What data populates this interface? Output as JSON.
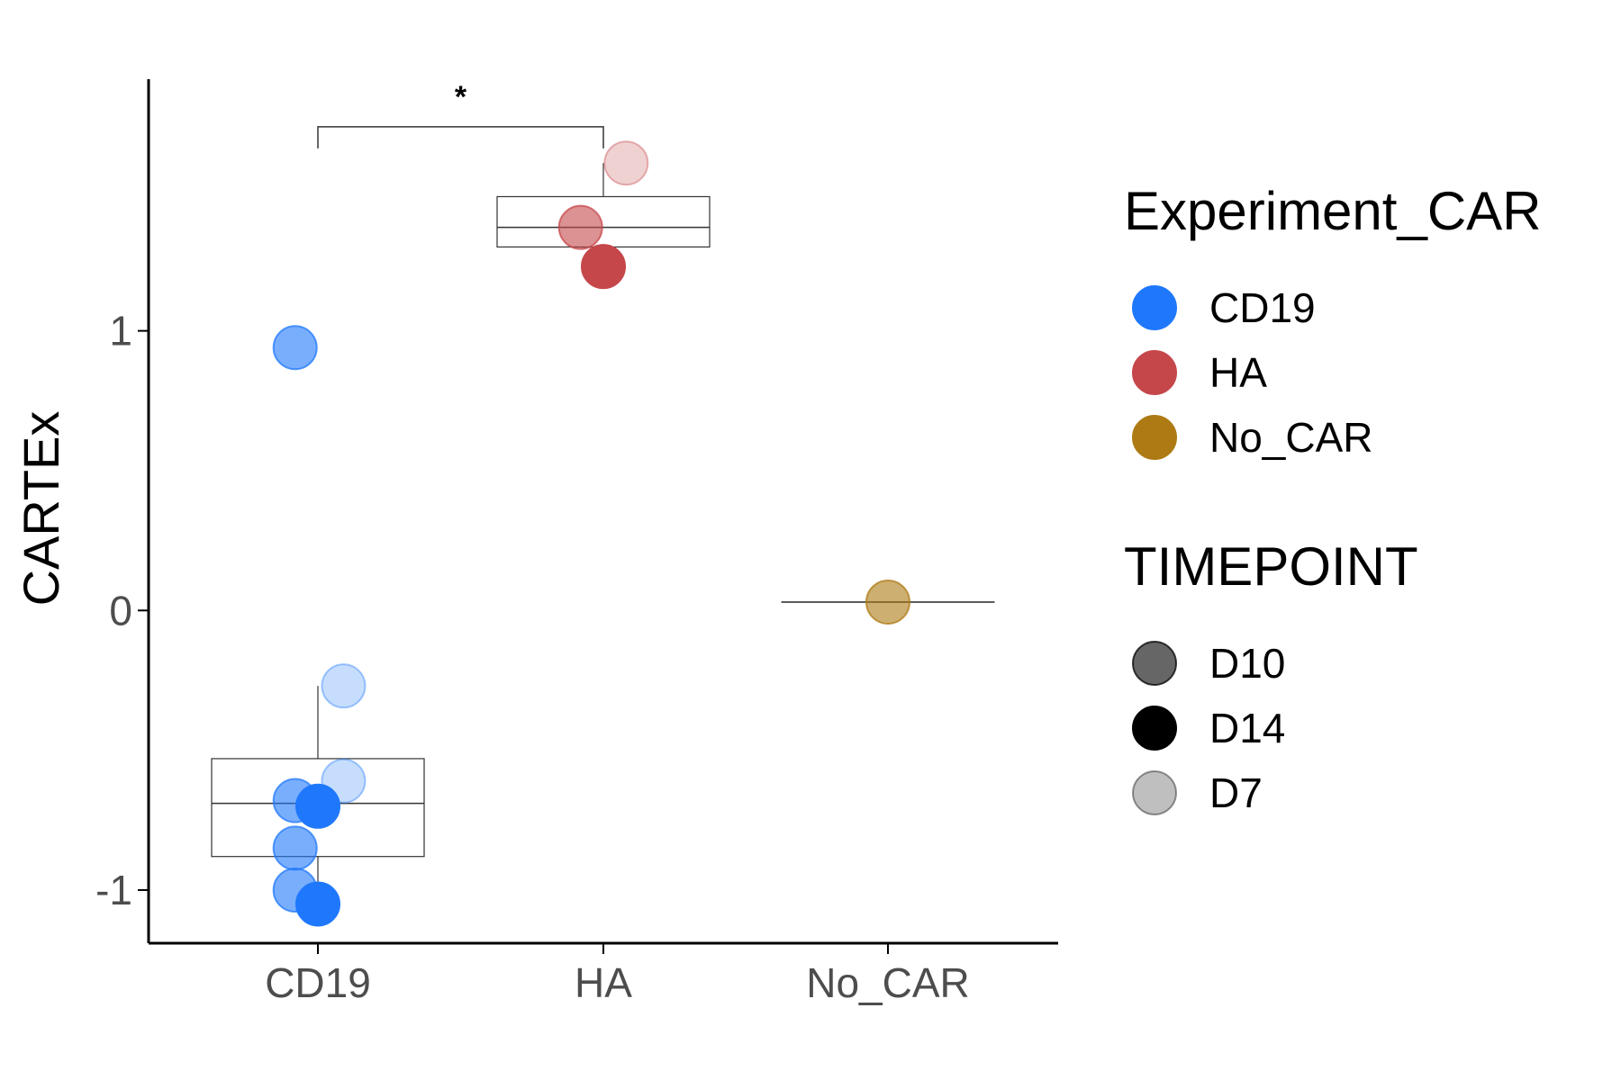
{
  "chart_data": {
    "type": "box-scatter",
    "title": "",
    "xlabel": "",
    "ylabel": "CARTEx",
    "ylim": [
      -1.19,
      1.9
    ],
    "yticks": [
      -1,
      0,
      1
    ],
    "ytick_labels": [
      "-1",
      "0",
      "1"
    ],
    "categories": [
      "CD19",
      "HA",
      "No_CAR"
    ],
    "grid": false,
    "legend_position": "right",
    "colors": {
      "CD19": "#1f78fb",
      "HA": "#c5474a",
      "No_CAR": "#ad7a14",
      "box_stroke": "#333333",
      "axis": "#000000"
    },
    "timepoint_alpha": {
      "D10": 0.6,
      "D14": 1.0,
      "D7": 0.25
    },
    "boxes": [
      {
        "category": "CD19",
        "whisker_low": -1.05,
        "q1": -0.88,
        "median": -0.69,
        "q3": -0.53,
        "whisker_high": -0.27
      },
      {
        "category": "HA",
        "whisker_low": 1.23,
        "q1": 1.3,
        "median": 1.37,
        "q3": 1.48,
        "whisker_high": 1.6
      },
      {
        "category": "No_CAR",
        "whisker_low": 0.03,
        "q1": 0.03,
        "median": 0.03,
        "q3": 0.03,
        "whisker_high": 0.03
      }
    ],
    "points": [
      {
        "category": "CD19",
        "timepoint": "D10",
        "y": 0.94,
        "jitter": -0.08
      },
      {
        "category": "CD19",
        "timepoint": "D10",
        "y": -0.68,
        "jitter": -0.08
      },
      {
        "category": "CD19",
        "timepoint": "D10",
        "y": -0.85,
        "jitter": -0.08
      },
      {
        "category": "CD19",
        "timepoint": "D10",
        "y": -1.0,
        "jitter": -0.08
      },
      {
        "category": "CD19",
        "timepoint": "D14",
        "y": -0.7,
        "jitter": 0.0
      },
      {
        "category": "CD19",
        "timepoint": "D14",
        "y": -1.05,
        "jitter": 0.0
      },
      {
        "category": "CD19",
        "timepoint": "D7",
        "y": -0.27,
        "jitter": 0.09
      },
      {
        "category": "CD19",
        "timepoint": "D7",
        "y": -0.61,
        "jitter": 0.09
      },
      {
        "category": "HA",
        "timepoint": "D10",
        "y": 1.37,
        "jitter": -0.08
      },
      {
        "category": "HA",
        "timepoint": "D14",
        "y": 1.23,
        "jitter": 0.0
      },
      {
        "category": "HA",
        "timepoint": "D7",
        "y": 1.6,
        "jitter": 0.08
      },
      {
        "category": "No_CAR",
        "timepoint": "D10",
        "y": 0.03,
        "jitter": 0.0
      }
    ],
    "significance": [
      {
        "from": "CD19",
        "to": "HA",
        "label": "*",
        "y": 1.73
      }
    ],
    "legends": [
      {
        "title": "Experiment_CAR",
        "entries": [
          {
            "label": "CD19",
            "color": "#1f78fb",
            "alpha": 1.0
          },
          {
            "label": "HA",
            "color": "#c5474a",
            "alpha": 1.0
          },
          {
            "label": "No_CAR",
            "color": "#ad7a14",
            "alpha": 1.0
          }
        ]
      },
      {
        "title": "TIMEPOINT",
        "entries": [
          {
            "label": "D10",
            "color": "#000000",
            "alpha": 0.6
          },
          {
            "label": "D14",
            "color": "#000000",
            "alpha": 1.0
          },
          {
            "label": "D7",
            "color": "#000000",
            "alpha": 0.25
          }
        ]
      }
    ]
  }
}
